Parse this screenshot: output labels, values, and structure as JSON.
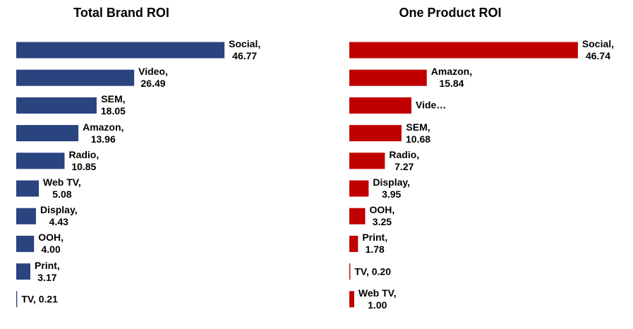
{
  "chart_data": [
    {
      "type": "bar",
      "orientation": "horizontal",
      "title": "Total Brand ROI",
      "color": "#2a4480",
      "categories": [
        "Social",
        "Video",
        "SEM",
        "Amazon",
        "Radio",
        "Web TV",
        "Display",
        "OOH",
        "Print",
        "TV"
      ],
      "values": [
        46.77,
        26.49,
        18.05,
        13.96,
        10.85,
        5.08,
        4.43,
        4.0,
        3.17,
        0.21
      ],
      "value_labels": [
        "Social,\n46.77",
        "Video,\n26.49",
        "SEM,\n18.05",
        "Amazon,\n13.96",
        "Radio,\n10.85",
        "Web TV,\n5.08",
        "Display,\n4.43",
        "OOH,\n4.00",
        "Print,\n3.17",
        "TV, 0.21"
      ]
    },
    {
      "type": "bar",
      "orientation": "horizontal",
      "title": "One Product ROI",
      "color": "#c00000",
      "categories": [
        "Social",
        "Amazon",
        "Video",
        "SEM",
        "Radio",
        "Display",
        "OOH",
        "Print",
        "TV",
        "Web TV"
      ],
      "values": [
        46.74,
        15.84,
        12.7,
        10.68,
        7.27,
        3.95,
        3.25,
        1.78,
        0.2,
        1.0
      ],
      "value_labels": [
        "Social,\n46.74",
        "Amazon,\n15.84",
        "Vide…",
        "SEM,\n10.68",
        "Radio,\n7.27",
        "Display,\n3.95",
        "OOH,\n3.25",
        "Print,\n1.78",
        "TV, 0.20",
        "Web TV,\n1.00"
      ]
    }
  ]
}
